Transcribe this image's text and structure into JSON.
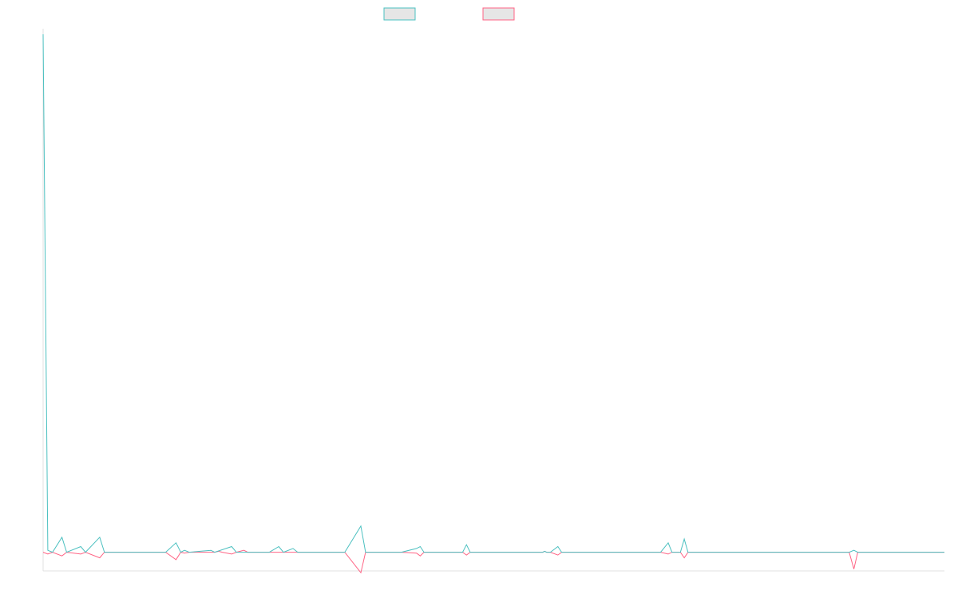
{
  "chart_data": {
    "type": "line",
    "title": "",
    "xlabel": "",
    "ylabel": "",
    "ylim": [
      -1,
      28
    ],
    "grid": false,
    "legend_position": "top-center",
    "series": [
      {
        "color": "#4bc0c0",
        "points": [
          [
            0,
            27.7
          ],
          [
            5,
            0.1
          ],
          [
            10,
            0
          ],
          [
            20,
            0.8
          ],
          [
            25,
            0
          ],
          [
            40,
            0.3
          ],
          [
            45,
            0
          ],
          [
            60,
            0.8
          ],
          [
            65,
            0
          ],
          [
            70,
            0
          ],
          [
            130,
            0
          ],
          [
            141,
            0.5
          ],
          [
            146,
            0
          ],
          [
            150,
            0.1
          ],
          [
            155,
            0
          ],
          [
            178,
            0.1
          ],
          [
            182,
            0
          ],
          [
            200,
            0.3
          ],
          [
            205,
            0
          ],
          [
            215,
            0
          ],
          [
            240,
            0
          ],
          [
            250,
            0.3
          ],
          [
            255,
            0
          ],
          [
            265,
            0.2
          ],
          [
            270,
            0
          ],
          [
            320,
            0
          ],
          [
            337,
            1.4
          ],
          [
            342,
            0
          ],
          [
            380,
            0
          ],
          [
            396,
            0.2
          ],
          [
            400,
            0.3
          ],
          [
            404,
            0
          ],
          [
            445,
            0
          ],
          [
            449,
            0.4
          ],
          [
            453,
            0
          ],
          [
            530,
            0
          ],
          [
            532,
            0.05
          ],
          [
            534,
            0
          ],
          [
            538,
            0
          ],
          [
            546,
            0.3
          ],
          [
            550,
            0
          ],
          [
            655,
            0
          ],
          [
            663,
            0.5
          ],
          [
            667,
            0
          ],
          [
            676,
            0
          ],
          [
            680,
            0.7
          ],
          [
            684,
            0
          ],
          [
            855,
            0
          ],
          [
            860,
            0.1
          ],
          [
            864,
            0
          ],
          [
            956,
            0
          ]
        ]
      },
      {
        "color": "#ff6384",
        "points": [
          [
            0,
            0
          ],
          [
            5,
            -0.1
          ],
          [
            10,
            0
          ],
          [
            20,
            -0.2
          ],
          [
            25,
            0
          ],
          [
            40,
            -0.1
          ],
          [
            45,
            0
          ],
          [
            60,
            -0.3
          ],
          [
            65,
            0
          ],
          [
            70,
            0
          ],
          [
            130,
            0
          ],
          [
            141,
            -0.4
          ],
          [
            146,
            0
          ],
          [
            150,
            -0.05
          ],
          [
            155,
            0
          ],
          [
            160,
            0
          ],
          [
            182,
            0
          ],
          [
            186,
            0.05
          ],
          [
            190,
            0
          ],
          [
            200,
            -0.1
          ],
          [
            205,
            0
          ],
          [
            213,
            0.1
          ],
          [
            217,
            0
          ],
          [
            320,
            0
          ],
          [
            337,
            -1.1
          ],
          [
            342,
            0
          ],
          [
            380,
            0
          ],
          [
            396,
            -0.05
          ],
          [
            400,
            -0.2
          ],
          [
            404,
            0
          ],
          [
            445,
            0
          ],
          [
            449,
            -0.15
          ],
          [
            453,
            0
          ],
          [
            530,
            0
          ],
          [
            532,
            0.05
          ],
          [
            534,
            0
          ],
          [
            538,
            0
          ],
          [
            546,
            -0.15
          ],
          [
            550,
            0
          ],
          [
            655,
            0
          ],
          [
            663,
            -0.1
          ],
          [
            667,
            0
          ],
          [
            676,
            0
          ],
          [
            680,
            -0.3
          ],
          [
            684,
            0
          ],
          [
            855,
            0
          ],
          [
            860,
            -0.9
          ],
          [
            864,
            0
          ],
          [
            956,
            0
          ]
        ]
      }
    ]
  }
}
